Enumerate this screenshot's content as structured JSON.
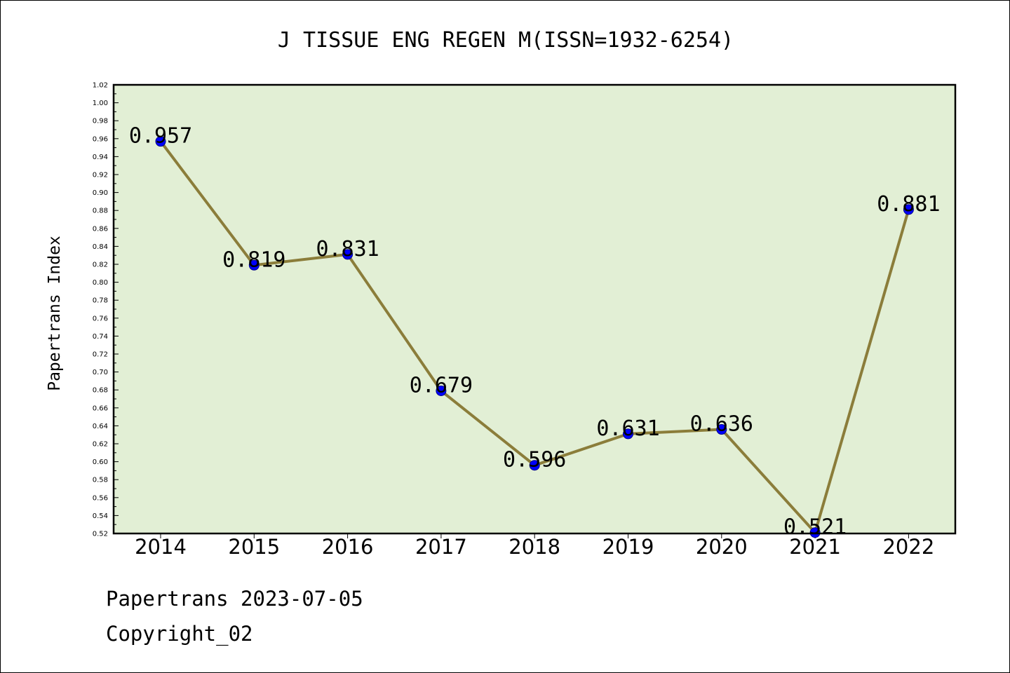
{
  "chart_data": {
    "type": "line",
    "title": "J TISSUE ENG REGEN M(ISSN=1932-6254)",
    "xlabel": "",
    "ylabel": "Papertrans Index",
    "categories": [
      "2014",
      "2015",
      "2016",
      "2017",
      "2018",
      "2019",
      "2020",
      "2021",
      "2022"
    ],
    "values": [
      0.957,
      0.819,
      0.831,
      0.679,
      0.596,
      0.631,
      0.636,
      0.521,
      0.881
    ],
    "data_labels": [
      "0.957",
      "0.819",
      "0.831",
      "0.679",
      "0.596",
      "0.631",
      "0.636",
      "0.521",
      "0.881"
    ],
    "ylim": [
      0.52,
      1.02
    ],
    "y_ticks": [
      "0.52",
      "0.54",
      "0.56",
      "0.58",
      "0.60",
      "0.62",
      "0.64",
      "0.66",
      "0.68",
      "0.70",
      "0.72",
      "0.74",
      "0.76",
      "0.78",
      "0.80",
      "0.82",
      "0.84",
      "0.86",
      "0.88",
      "0.90",
      "0.92",
      "0.94",
      "0.96",
      "0.98",
      "1.00",
      "1.02"
    ],
    "grid": false,
    "legend": "none",
    "colors": {
      "plot_background": "#e2efd5",
      "line": "#8b7d3a",
      "marker": "#0000ff",
      "frame": "#000000"
    }
  },
  "footer": {
    "date_line": "Papertrans 2023-07-05",
    "copyright_line": "Copyright_02"
  }
}
